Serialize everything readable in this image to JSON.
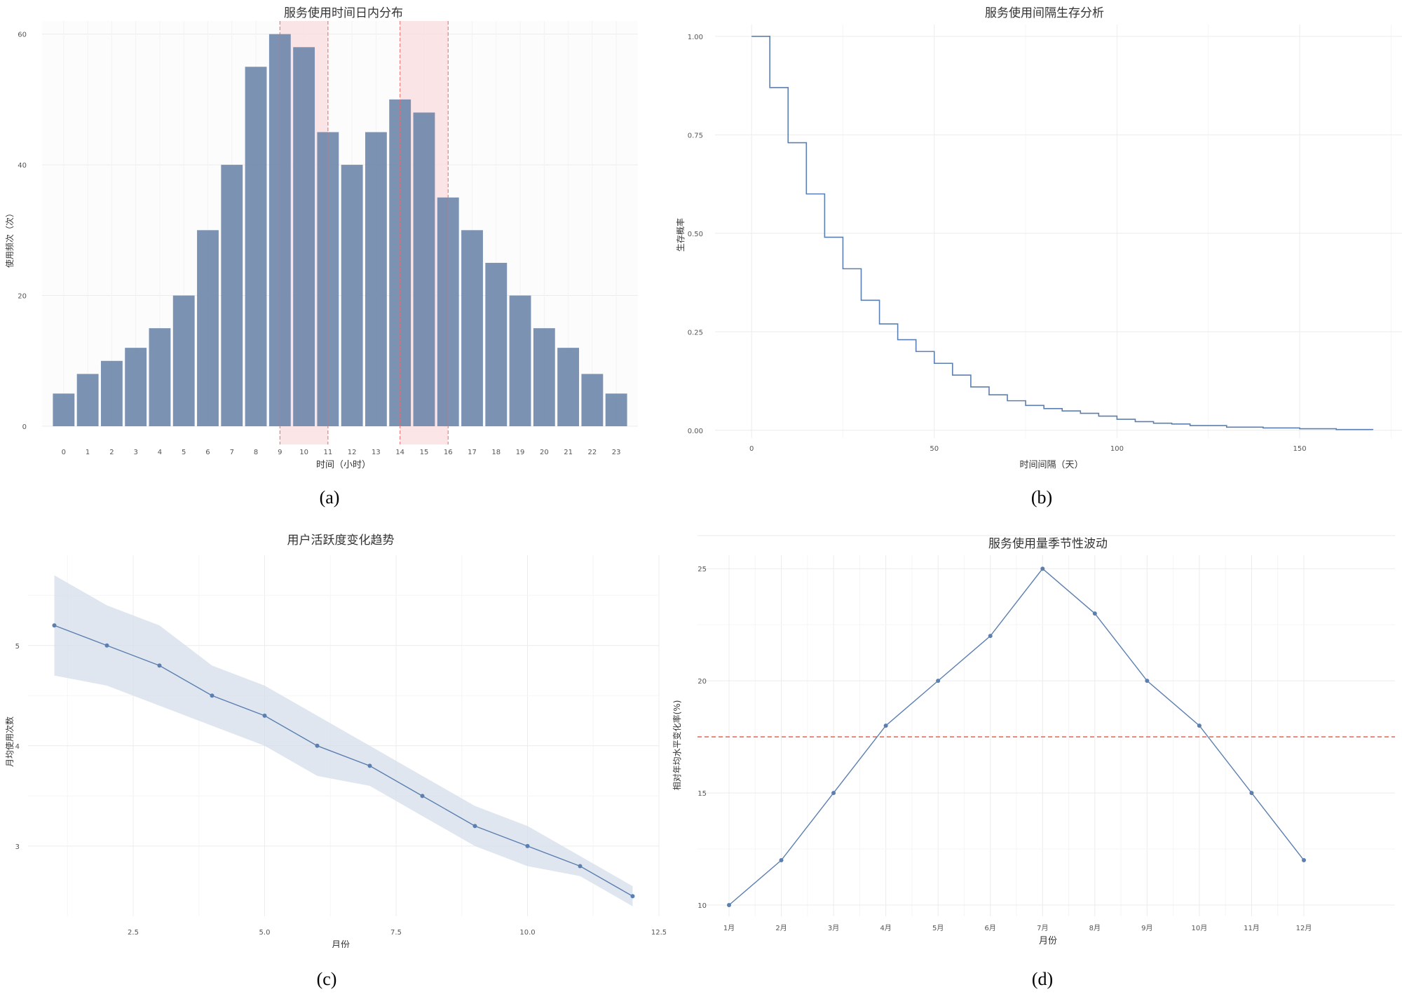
{
  "captions": [
    "(a)",
    "(b)",
    "(c)",
    "(d)"
  ],
  "colors": {
    "bar": "#7089ad",
    "line": "#5b7fb0",
    "band": "#d4deea",
    "highlight": "#fbdcdf",
    "highlight_line": "#e06b6b",
    "ref_line": "#e8553f",
    "grid": "#ececec",
    "axis_text": "#555555"
  },
  "chart_data": [
    {
      "type": "bar",
      "title": "服务使用时间日内分布",
      "xlabel": "时间（小时）",
      "ylabel": "使用频次（次）",
      "categories": [
        "0",
        "1",
        "2",
        "3",
        "4",
        "5",
        "6",
        "7",
        "8",
        "9",
        "10",
        "11",
        "12",
        "13",
        "14",
        "15",
        "16",
        "17",
        "18",
        "19",
        "20",
        "21",
        "22",
        "23"
      ],
      "values": [
        5,
        8,
        10,
        12,
        15,
        20,
        30,
        40,
        55,
        60,
        58,
        45,
        40,
        45,
        50,
        48,
        35,
        30,
        25,
        20,
        15,
        12,
        8,
        5
      ],
      "ylim": [
        0,
        62
      ],
      "yticks": [
        "0",
        "20",
        "40",
        "60"
      ],
      "highlight_ranges": [
        [
          9,
          11
        ],
        [
          14,
          16
        ]
      ]
    },
    {
      "type": "line",
      "title": "服务使用间隔生存分析",
      "xlabel": "时间间隔（天）",
      "ylabel": "生存概率",
      "x": [
        0,
        5,
        10,
        15,
        20,
        25,
        30,
        35,
        40,
        45,
        50,
        55,
        60,
        65,
        70,
        75,
        80,
        85,
        90,
        95,
        100,
        105,
        110,
        115,
        120,
        130,
        140,
        150,
        160,
        170
      ],
      "y": [
        1.0,
        0.87,
        0.73,
        0.6,
        0.49,
        0.41,
        0.33,
        0.27,
        0.23,
        0.2,
        0.17,
        0.14,
        0.11,
        0.09,
        0.075,
        0.063,
        0.055,
        0.049,
        0.043,
        0.036,
        0.028,
        0.022,
        0.018,
        0.016,
        0.012,
        0.008,
        0.006,
        0.004,
        0.002,
        0.001
      ],
      "xlim": [
        -10,
        178
      ],
      "ylim": [
        -0.02,
        1.03
      ],
      "xticks": [
        "0",
        "50",
        "100",
        "150"
      ],
      "yticks": [
        "0.00",
        "0.25",
        "0.50",
        "0.75",
        "1.00"
      ]
    },
    {
      "type": "line",
      "title": "用户活跃度变化趋势",
      "xlabel": "月份",
      "ylabel": "月均使用次数",
      "x": [
        1,
        2,
        3,
        4,
        5,
        6,
        7,
        8,
        9,
        10,
        11,
        12
      ],
      "y": [
        5.2,
        5.0,
        4.8,
        4.5,
        4.3,
        4.0,
        3.8,
        3.5,
        3.2,
        3.0,
        2.8,
        2.5
      ],
      "lower": [
        4.7,
        4.6,
        4.4,
        4.2,
        4.0,
        3.7,
        3.6,
        3.3,
        3.0,
        2.8,
        2.7,
        2.4
      ],
      "upper": [
        5.7,
        5.4,
        5.2,
        4.8,
        4.6,
        4.3,
        4.0,
        3.7,
        3.4,
        3.2,
        2.9,
        2.6
      ],
      "xlim": [
        0.5,
        12.5
      ],
      "ylim": [
        2.3,
        5.9
      ],
      "xticks": [
        "2.5",
        "5.0",
        "7.5",
        "10.0",
        "12.5"
      ],
      "yticks": [
        "3",
        "4",
        "5"
      ]
    },
    {
      "type": "line",
      "title": "服务使用量季节性波动",
      "xlabel": "月份",
      "ylabel": "相对年均水平变化率(%)",
      "categories": [
        "1月",
        "2月",
        "3月",
        "4月",
        "5月",
        "6月",
        "7月",
        "8月",
        "9月",
        "10月",
        "11月",
        "12月"
      ],
      "values": [
        10,
        12,
        15,
        18,
        20,
        22,
        25,
        23,
        20,
        18,
        15,
        12
      ],
      "reference_line": 17.5,
      "ylim": [
        9.5,
        25.6
      ],
      "yticks": [
        "10",
        "15",
        "20",
        "25"
      ]
    }
  ]
}
